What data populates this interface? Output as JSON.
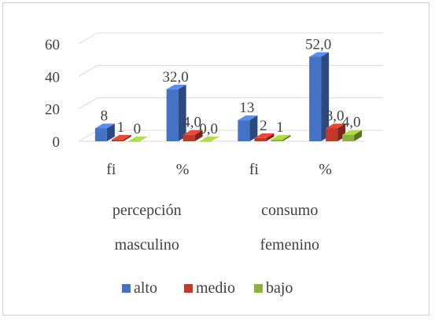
{
  "chart_data": {
    "type": "bar",
    "style": "3d-clustered-column",
    "title": "",
    "xlabel": "",
    "ylabel": "",
    "ylim": [
      0,
      60
    ],
    "yticks": [
      0,
      20,
      40,
      60
    ],
    "grid": true,
    "legend_position": "bottom",
    "categories": [
      "fi",
      "%",
      "fi",
      "%"
    ],
    "groups": [
      {
        "lines": [
          "percepción",
          "masculino"
        ]
      },
      {
        "lines": [
          "consumo",
          "femenino"
        ]
      }
    ],
    "series": [
      {
        "name": "alto",
        "color": "#4472C4",
        "values": [
          8,
          32,
          13,
          52
        ],
        "labels": [
          "8",
          "32,0",
          "13",
          "52,0"
        ]
      },
      {
        "name": "medio",
        "color": "#C0392B",
        "values": [
          1,
          4,
          2,
          8
        ],
        "labels": [
          "1",
          "4,0",
          "2",
          "8,0"
        ]
      },
      {
        "name": "bajo",
        "color": "#8DB13A",
        "values": [
          0,
          0,
          1,
          4
        ],
        "labels": [
          "0",
          "0,0",
          "1",
          "4,0"
        ]
      }
    ]
  }
}
